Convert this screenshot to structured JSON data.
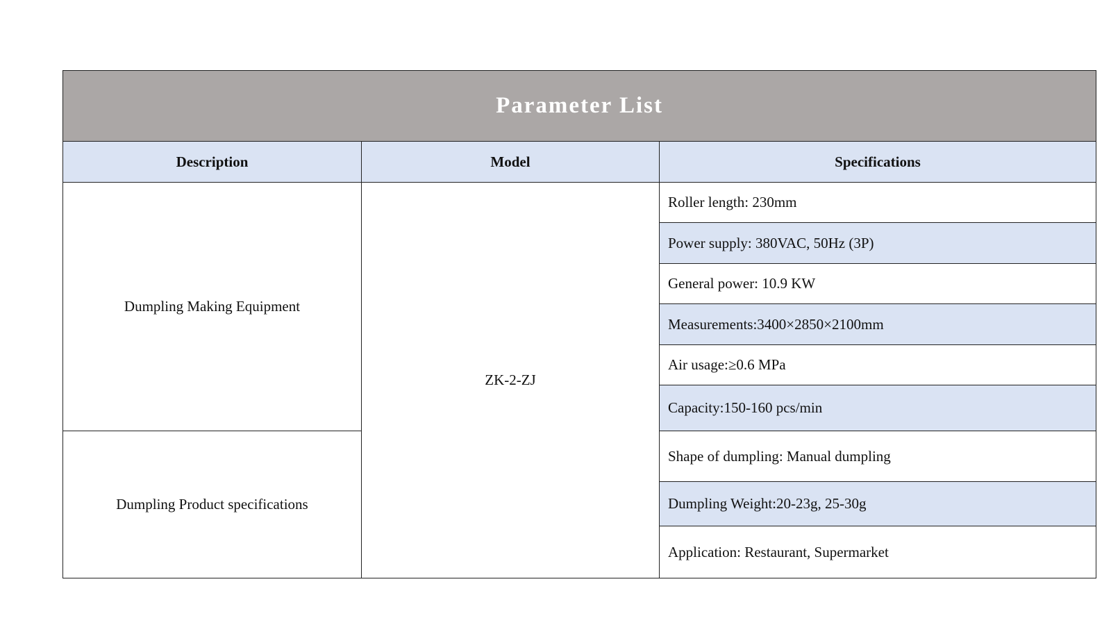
{
  "title": "Parameter List",
  "headers": {
    "description": "Description",
    "model": "Model",
    "specifications": "Specifications"
  },
  "descriptions": [
    "Dumpling Making Equipment",
    "Dumpling Product specifications"
  ],
  "model": "ZK-2-ZJ",
  "specs": [
    "Roller length: 230mm",
    "Power supply: 380VAC, 50Hz (3P)",
    "General power: 10.9 KW",
    "Measurements:3400×2850×2100mm",
    "Air usage:≥0.6 MPa",
    "Capacity:150-160 pcs/min",
    "Shape of dumpling: Manual dumpling",
    "Dumpling Weight:20-23g, 25-30g",
    "Application: Restaurant, Supermarket"
  ],
  "colors": {
    "title_bg": "#aba7a6",
    "header_bg": "#dae3f3",
    "alt_row_bg": "#dae3f3"
  }
}
